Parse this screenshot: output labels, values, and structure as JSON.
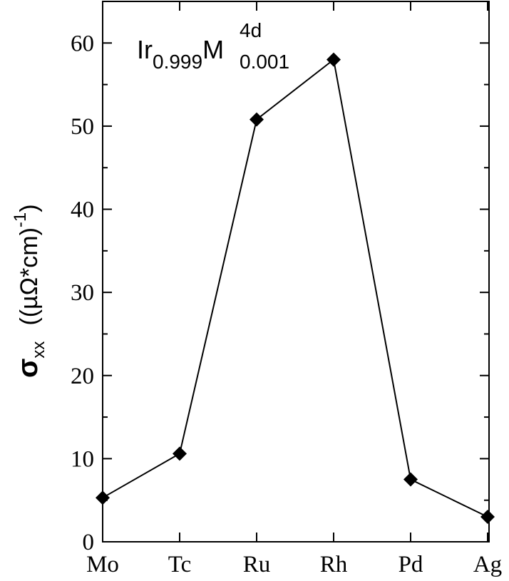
{
  "chart_data": {
    "type": "line",
    "annotation": {
      "base": "Ir",
      "base_sub": "0.999",
      "element": "M",
      "element_sup": "4d",
      "element_sub": "0.001"
    },
    "ylabel": {
      "symbol": "σ",
      "symbol_sub": "xx",
      "unit": "((µΩ*cm)",
      "unit_sup": "-1",
      "unit_close": ")"
    },
    "categories": [
      "Mo",
      "Tc",
      "Ru",
      "Rh",
      "Pd",
      "Ag"
    ],
    "series": [
      {
        "name": "Ir0.999M0.001",
        "color": "#000000",
        "values": [
          5.3,
          10.6,
          50.8,
          58.0,
          7.5,
          3.0
        ]
      }
    ],
    "ylim": [
      0,
      65
    ],
    "yticks": [
      0,
      10,
      20,
      30,
      40,
      50,
      60
    ],
    "minor_yticks": [
      5,
      15,
      25,
      35,
      45,
      55,
      65
    ],
    "grid": false
  }
}
